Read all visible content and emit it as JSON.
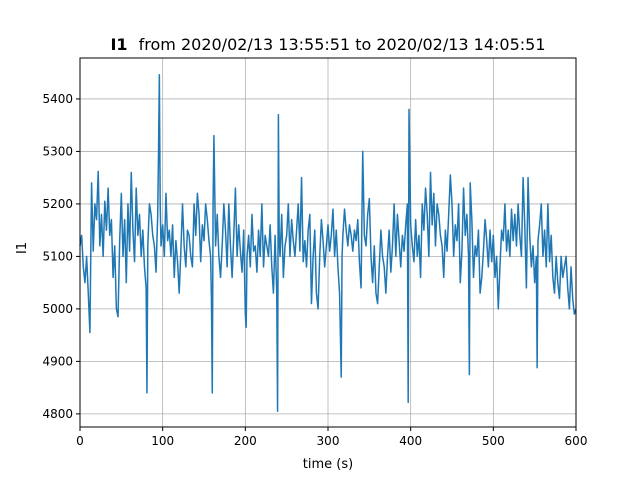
{
  "chart_data": {
    "type": "line",
    "title_bold": "I1",
    "title_rest": "from 2020/02/13 13:55:51 to 2020/02/13 14:05:51",
    "xlabel": "time (s)",
    "ylabel": "I1",
    "xlim": [
      0,
      600
    ],
    "ylim": [
      4775,
      5478
    ],
    "xticks": [
      0,
      100,
      200,
      300,
      400,
      500,
      600
    ],
    "yticks": [
      4800,
      4900,
      5000,
      5100,
      5200,
      5300,
      5400
    ],
    "grid": true,
    "line_color": "#1f77b4",
    "series": [
      {
        "points": [
          [
            0,
            5120
          ],
          [
            2,
            5140
          ],
          [
            4,
            5080
          ],
          [
            6,
            5050
          ],
          [
            8,
            5100
          ],
          [
            10,
            5030
          ],
          [
            12,
            4955
          ],
          [
            14,
            5240
          ],
          [
            16,
            5110
          ],
          [
            18,
            5200
          ],
          [
            20,
            5170
          ],
          [
            22,
            5262
          ],
          [
            24,
            5120
          ],
          [
            26,
            5180
          ],
          [
            28,
            5100
          ],
          [
            30,
            5205
          ],
          [
            32,
            5150
          ],
          [
            34,
            5230
          ],
          [
            36,
            5140
          ],
          [
            38,
            5170
          ],
          [
            40,
            5060
          ],
          [
            42,
            5120
          ],
          [
            44,
            5000
          ],
          [
            46,
            4985
          ],
          [
            48,
            5130
          ],
          [
            50,
            5220
          ],
          [
            52,
            5100
          ],
          [
            54,
            5170
          ],
          [
            56,
            5050
          ],
          [
            58,
            5200
          ],
          [
            60,
            5110
          ],
          [
            62,
            5260
          ],
          [
            64,
            5150
          ],
          [
            66,
            5090
          ],
          [
            68,
            5230
          ],
          [
            70,
            5140
          ],
          [
            72,
            5180
          ],
          [
            74,
            5100
          ],
          [
            76,
            5150
          ],
          [
            78,
            5080
          ],
          [
            80,
            5040
          ],
          [
            81,
            4840
          ],
          [
            82,
            5120
          ],
          [
            84,
            5200
          ],
          [
            86,
            5180
          ],
          [
            88,
            5140
          ],
          [
            90,
            5120
          ],
          [
            92,
            5070
          ],
          [
            94,
            5180
          ],
          [
            95,
            5300
          ],
          [
            96,
            5446
          ],
          [
            97,
            5200
          ],
          [
            98,
            5120
          ],
          [
            100,
            5160
          ],
          [
            102,
            5100
          ],
          [
            104,
            5220
          ],
          [
            106,
            5130
          ],
          [
            108,
            5150
          ],
          [
            110,
            5100
          ],
          [
            112,
            5160
          ],
          [
            114,
            5060
          ],
          [
            116,
            5130
          ],
          [
            118,
            5090
          ],
          [
            120,
            5030
          ],
          [
            122,
            5110
          ],
          [
            124,
            5200
          ],
          [
            126,
            5120
          ],
          [
            128,
            5080
          ],
          [
            130,
            5150
          ],
          [
            132,
            5140
          ],
          [
            134,
            5100
          ],
          [
            136,
            5080
          ],
          [
            138,
            5200
          ],
          [
            140,
            5140
          ],
          [
            142,
            5220
          ],
          [
            144,
            5180
          ],
          [
            146,
            5090
          ],
          [
            148,
            5160
          ],
          [
            150,
            5130
          ],
          [
            152,
            5200
          ],
          [
            154,
            5170
          ],
          [
            156,
            5130
          ],
          [
            158,
            5100
          ],
          [
            159,
            5020
          ],
          [
            160,
            4840
          ],
          [
            161,
            5200
          ],
          [
            162,
            5330
          ],
          [
            164,
            5120
          ],
          [
            166,
            5180
          ],
          [
            168,
            5100
          ],
          [
            170,
            5060
          ],
          [
            172,
            5120
          ],
          [
            174,
            5200
          ],
          [
            176,
            5150
          ],
          [
            178,
            5080
          ],
          [
            180,
            5200
          ],
          [
            182,
            5120
          ],
          [
            184,
            5060
          ],
          [
            186,
            5140
          ],
          [
            188,
            5230
          ],
          [
            190,
            5100
          ],
          [
            192,
            5160
          ],
          [
            194,
            5110
          ],
          [
            196,
            5070
          ],
          [
            198,
            5150
          ],
          [
            200,
            4990
          ],
          [
            201,
            4965
          ],
          [
            202,
            5100
          ],
          [
            204,
            5140
          ],
          [
            206,
            5080
          ],
          [
            208,
            5180
          ],
          [
            210,
            5110
          ],
          [
            212,
            5120
          ],
          [
            214,
            5070
          ],
          [
            216,
            5150
          ],
          [
            218,
            5100
          ],
          [
            220,
            5200
          ],
          [
            222,
            5080
          ],
          [
            224,
            5140
          ],
          [
            226,
            5120
          ],
          [
            228,
            5100
          ],
          [
            230,
            5160
          ],
          [
            232,
            5080
          ],
          [
            234,
            5030
          ],
          [
            236,
            5140
          ],
          [
            238,
            5030
          ],
          [
            239,
            4805
          ],
          [
            240,
            5370
          ],
          [
            241,
            5130
          ],
          [
            242,
            5100
          ],
          [
            244,
            5180
          ],
          [
            246,
            5060
          ],
          [
            248,
            5120
          ],
          [
            250,
            5140
          ],
          [
            252,
            5200
          ],
          [
            254,
            5100
          ],
          [
            256,
            5170
          ],
          [
            258,
            5130
          ],
          [
            260,
            5100
          ],
          [
            262,
            5150
          ],
          [
            264,
            5200
          ],
          [
            266,
            5110
          ],
          [
            268,
            5250
          ],
          [
            270,
            5090
          ],
          [
            272,
            5130
          ],
          [
            274,
            5080
          ],
          [
            276,
            5150
          ],
          [
            278,
            5180
          ],
          [
            280,
            5010
          ],
          [
            282,
            5100
          ],
          [
            284,
            5150
          ],
          [
            286,
            5030
          ],
          [
            288,
            5000
          ],
          [
            290,
            5100
          ],
          [
            292,
            5170
          ],
          [
            294,
            5130
          ],
          [
            296,
            5080
          ],
          [
            298,
            5120
          ],
          [
            300,
            5160
          ],
          [
            302,
            5110
          ],
          [
            304,
            5140
          ],
          [
            306,
            5190
          ],
          [
            308,
            5100
          ],
          [
            310,
            5150
          ],
          [
            312,
            5080
          ],
          [
            314,
            5030
          ],
          [
            316,
            4870
          ],
          [
            317,
            5100
          ],
          [
            318,
            5140
          ],
          [
            320,
            5190
          ],
          [
            322,
            5150
          ],
          [
            324,
            5120
          ],
          [
            326,
            5160
          ],
          [
            328,
            5140
          ],
          [
            330,
            5110
          ],
          [
            332,
            5150
          ],
          [
            334,
            5130
          ],
          [
            336,
            5170
          ],
          [
            338,
            5090
          ],
          [
            340,
            5040
          ],
          [
            342,
            5300
          ],
          [
            344,
            5140
          ],
          [
            346,
            5120
          ],
          [
            348,
            5180
          ],
          [
            350,
            5210
          ],
          [
            352,
            5100
          ],
          [
            354,
            5050
          ],
          [
            356,
            5120
          ],
          [
            358,
            5030
          ],
          [
            360,
            5010
          ],
          [
            362,
            5080
          ],
          [
            364,
            5150
          ],
          [
            366,
            5100
          ],
          [
            368,
            5080
          ],
          [
            370,
            5030
          ],
          [
            372,
            5100
          ],
          [
            374,
            5150
          ],
          [
            376,
            5070
          ],
          [
            378,
            5120
          ],
          [
            380,
            5200
          ],
          [
            382,
            5100
          ],
          [
            384,
            5180
          ],
          [
            386,
            5130
          ],
          [
            388,
            5080
          ],
          [
            390,
            5140
          ],
          [
            392,
            5110
          ],
          [
            394,
            5160
          ],
          [
            396,
            5200
          ],
          [
            397,
            4822
          ],
          [
            398,
            5380
          ],
          [
            400,
            5160
          ],
          [
            402,
            5120
          ],
          [
            404,
            5090
          ],
          [
            406,
            5170
          ],
          [
            408,
            5100
          ],
          [
            410,
            5140
          ],
          [
            412,
            5060
          ],
          [
            414,
            5200
          ],
          [
            416,
            5150
          ],
          [
            418,
            5230
          ],
          [
            420,
            5180
          ],
          [
            422,
            5100
          ],
          [
            424,
            5260
          ],
          [
            426,
            5160
          ],
          [
            428,
            5220
          ],
          [
            430,
            5120
          ],
          [
            432,
            5200
          ],
          [
            434,
            5180
          ],
          [
            436,
            5140
          ],
          [
            438,
            5120
          ],
          [
            440,
            5060
          ],
          [
            442,
            5150
          ],
          [
            444,
            5110
          ],
          [
            446,
            5180
          ],
          [
            448,
            5255
          ],
          [
            450,
            5200
          ],
          [
            452,
            5100
          ],
          [
            454,
            5160
          ],
          [
            456,
            5130
          ],
          [
            458,
            5200
          ],
          [
            460,
            5050
          ],
          [
            462,
            5110
          ],
          [
            464,
            5230
          ],
          [
            466,
            5140
          ],
          [
            468,
            5180
          ],
          [
            470,
            5100
          ],
          [
            471,
            4875
          ],
          [
            472,
            5240
          ],
          [
            474,
            5170
          ],
          [
            476,
            5060
          ],
          [
            478,
            5120
          ],
          [
            480,
            5100
          ],
          [
            482,
            5150
          ],
          [
            484,
            5030
          ],
          [
            486,
            5060
          ],
          [
            488,
            5110
          ],
          [
            490,
            5170
          ],
          [
            492,
            5130
          ],
          [
            494,
            5080
          ],
          [
            496,
            5150
          ],
          [
            498,
            5090
          ],
          [
            500,
            5140
          ],
          [
            502,
            5060
          ],
          [
            504,
            5100
          ],
          [
            506,
            5000
          ],
          [
            508,
            5080
          ],
          [
            510,
            5150
          ],
          [
            512,
            5130
          ],
          [
            514,
            5200
          ],
          [
            516,
            5110
          ],
          [
            518,
            5150
          ],
          [
            520,
            5100
          ],
          [
            522,
            5190
          ],
          [
            524,
            5130
          ],
          [
            526,
            5180
          ],
          [
            528,
            5120
          ],
          [
            530,
            5200
          ],
          [
            532,
            5140
          ],
          [
            534,
            5100
          ],
          [
            536,
            5250
          ],
          [
            538,
            5160
          ],
          [
            540,
            5040
          ],
          [
            542,
            5250
          ],
          [
            544,
            5140
          ],
          [
            546,
            5080
          ],
          [
            548,
            5120
          ],
          [
            550,
            5050
          ],
          [
            552,
            5100
          ],
          [
            553,
            4888
          ],
          [
            554,
            5130
          ],
          [
            556,
            5160
          ],
          [
            558,
            5200
          ],
          [
            560,
            5100
          ],
          [
            562,
            5150
          ],
          [
            564,
            5080
          ],
          [
            566,
            5200
          ],
          [
            568,
            5090
          ],
          [
            570,
            5140
          ],
          [
            572,
            5060
          ],
          [
            574,
            5030
          ],
          [
            576,
            5100
          ],
          [
            578,
            5050
          ],
          [
            580,
            5020
          ],
          [
            582,
            5100
          ],
          [
            584,
            5060
          ],
          [
            586,
            5080
          ],
          [
            588,
            5100
          ],
          [
            590,
            5040
          ],
          [
            592,
            5000
          ],
          [
            594,
            5080
          ],
          [
            596,
            5020
          ],
          [
            598,
            4990
          ],
          [
            600,
            5000
          ]
        ]
      }
    ]
  }
}
